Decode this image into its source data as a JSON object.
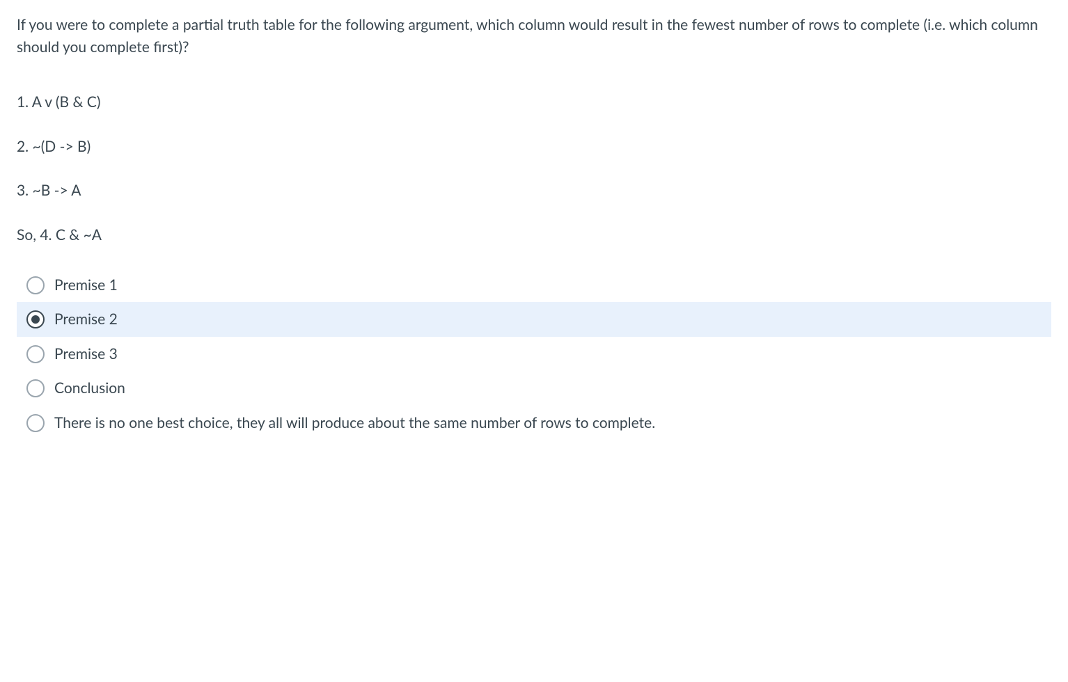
{
  "question": {
    "text": "If you were to complete a partial truth table for the following argument, which column would result in the fewest number of rows to complete (i.e. which column should you complete first)?"
  },
  "argument": {
    "line1": "1. A v (B & C)",
    "line2": "2. ~(D -> B)",
    "line3": "3. ~B -> A",
    "line4": "So, 4. C & ~A"
  },
  "options": [
    {
      "label": "Premise 1",
      "selected": false
    },
    {
      "label": "Premise 2",
      "selected": true
    },
    {
      "label": "Premise 3",
      "selected": false
    },
    {
      "label": "Conclusion",
      "selected": false
    },
    {
      "label": "There is no one best choice, they all will produce about the same number of rows to complete.",
      "selected": false
    }
  ],
  "colors": {
    "text": "#3a4750",
    "selected_bg": "#e8f1fc",
    "radio_border": "#9aa5ae",
    "radio_selected": "#3a4750",
    "background": "#ffffff"
  }
}
